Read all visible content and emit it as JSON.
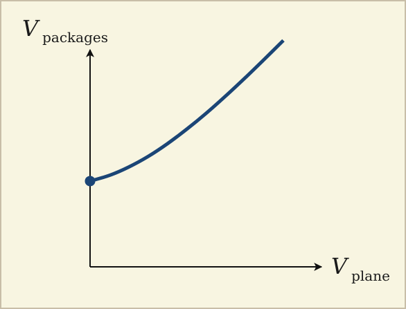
{
  "colors": {
    "background": "#f8f5e1",
    "border": "#c8bea8",
    "axis": "#111111",
    "curve": "#1b4576"
  },
  "chart_data": {
    "type": "line",
    "title": "",
    "xlabel": {
      "symbol": "V",
      "subscript": "plane"
    },
    "ylabel": {
      "symbol": "V",
      "subscript": "packages"
    },
    "xlim": [
      0,
      1
    ],
    "ylim": [
      0,
      1
    ],
    "grid": false,
    "legend": "none",
    "ticks": false,
    "series": [
      {
        "x": [
          0,
          0.1,
          0.2,
          0.3,
          0.4,
          0.5,
          0.6,
          0.7,
          0.8,
          0.9,
          1.0
        ],
        "y": [
          0.39,
          0.416,
          0.454,
          0.502,
          0.56,
          0.626,
          0.698,
          0.776,
          0.858,
          0.943,
          1.03
        ]
      }
    ],
    "annotations": [
      {
        "type": "point",
        "x": 0,
        "y": 0.39,
        "marker": "filled-circle"
      }
    ]
  }
}
